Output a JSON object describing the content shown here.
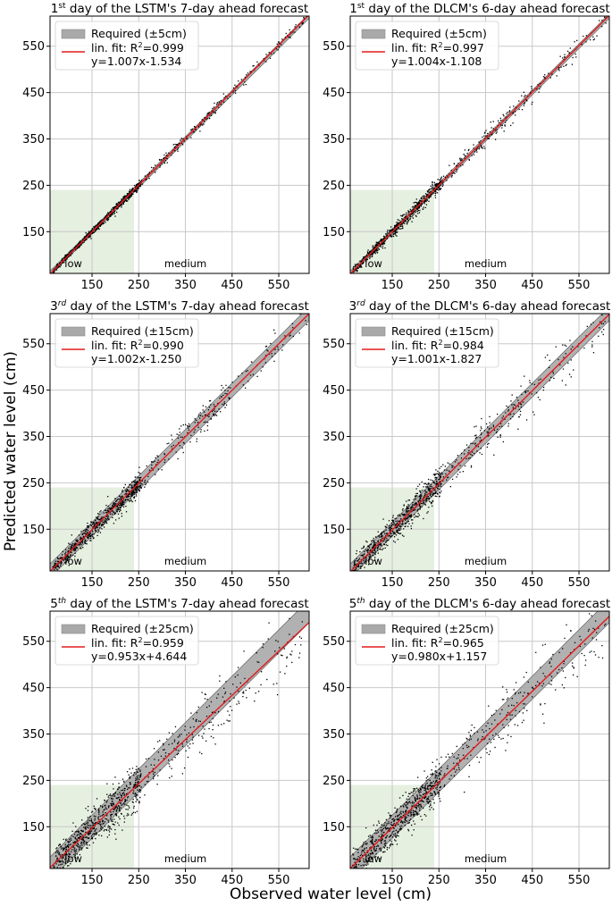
{
  "figure": {
    "xlabel": "Observed water level (cm)",
    "ylabel": "Predicted water level (cm)"
  },
  "zone_labels": {
    "low": "low",
    "medium": "medium"
  },
  "colors": {
    "band": "#a9a9a9",
    "fit": "#e41a1c",
    "low_zone": "#e6f0e1",
    "points": "#000000",
    "grid": "#c8c8c8",
    "diag": "#555555"
  },
  "chart_data": [
    {
      "type": "scatter",
      "title_pre": "1",
      "title_sup": "st",
      "title_post": " day of the LSTM's 7-day ahead forecast",
      "legend": [
        "Required (±5cm)",
        "lin. fit: R",
        "=0.999",
        "y=1.007x-1.534"
      ],
      "band": 5,
      "slope": 1.007,
      "intercept": -1.534,
      "r2": 0.999,
      "xlim": [
        60,
        615
      ],
      "ylim": [
        60,
        615
      ],
      "xticks": [
        150,
        250,
        350,
        450,
        550
      ],
      "yticks": [
        150,
        250,
        350,
        450,
        550
      ],
      "low_zone": [
        60,
        240
      ],
      "noise": 4
    },
    {
      "type": "scatter",
      "title_pre": "1",
      "title_sup": "st",
      "title_post": " day of the DLCM's 6-day ahead forecast",
      "legend": [
        "Required (±5cm)",
        "lin. fit: R",
        "=0.997",
        "y=1.004x-1.108"
      ],
      "band": 5,
      "slope": 1.004,
      "intercept": -1.108,
      "r2": 0.997,
      "xlim": [
        60,
        615
      ],
      "ylim": [
        60,
        615
      ],
      "xticks": [
        150,
        250,
        350,
        450,
        550
      ],
      "yticks": [
        150,
        250,
        350,
        450,
        550
      ],
      "low_zone": [
        60,
        240
      ],
      "noise": 7
    },
    {
      "type": "scatter",
      "title_pre": "3",
      "title_sup": "rd",
      "title_post": " day of the LSTM's 7-day ahead forecast",
      "legend": [
        "Required (±15cm)",
        "lin. fit: R",
        "=0.990",
        "y=1.002x-1.250"
      ],
      "band": 15,
      "slope": 1.002,
      "intercept": -1.25,
      "r2": 0.99,
      "xlim": [
        60,
        615
      ],
      "ylim": [
        60,
        615
      ],
      "xticks": [
        150,
        250,
        350,
        450,
        550
      ],
      "yticks": [
        150,
        250,
        350,
        450,
        550
      ],
      "low_zone": [
        60,
        240
      ],
      "noise": 11
    },
    {
      "type": "scatter",
      "title_pre": "3",
      "title_sup": "rd",
      "title_post": " day of the DLCM's 6-day ahead forecast",
      "legend": [
        "Required (±15cm)",
        "lin. fit: R",
        "=0.984",
        "y=1.001x-1.827"
      ],
      "band": 15,
      "slope": 1.001,
      "intercept": -1.827,
      "r2": 0.984,
      "xlim": [
        60,
        615
      ],
      "ylim": [
        60,
        615
      ],
      "xticks": [
        150,
        250,
        350,
        450,
        550
      ],
      "yticks": [
        150,
        250,
        350,
        450,
        550
      ],
      "low_zone": [
        60,
        240
      ],
      "noise": 15
    },
    {
      "type": "scatter",
      "title_pre": "5",
      "title_sup": "th",
      "title_post": " day of the LSTM's 7-day ahead forecast",
      "legend": [
        "Required (±25cm)",
        "lin. fit: R",
        "=0.959",
        "y=0.953x+4.644"
      ],
      "band": 25,
      "slope": 0.953,
      "intercept": 4.644,
      "r2": 0.959,
      "xlim": [
        60,
        615
      ],
      "ylim": [
        60,
        615
      ],
      "xticks": [
        150,
        250,
        350,
        450,
        550
      ],
      "yticks": [
        150,
        250,
        350,
        450,
        550
      ],
      "low_zone": [
        60,
        240
      ],
      "noise": 22
    },
    {
      "type": "scatter",
      "title_pre": "5",
      "title_sup": "th",
      "title_post": " day of the DLCM's 6-day ahead forecast",
      "legend": [
        "Required (±25cm)",
        "lin. fit: R",
        "=0.965",
        "y=0.980x+1.157"
      ],
      "band": 25,
      "slope": 0.98,
      "intercept": 1.157,
      "r2": 0.965,
      "xlim": [
        60,
        615
      ],
      "ylim": [
        60,
        615
      ],
      "xticks": [
        150,
        250,
        350,
        450,
        550
      ],
      "yticks": [
        150,
        250,
        350,
        450,
        550
      ],
      "low_zone": [
        60,
        240
      ],
      "noise": 21
    }
  ]
}
